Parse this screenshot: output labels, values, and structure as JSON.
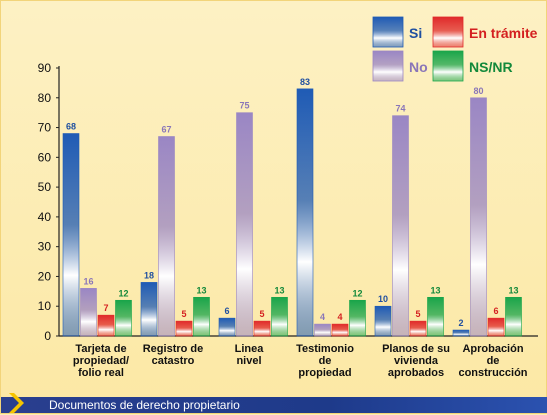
{
  "chart_data": {
    "type": "bar",
    "xlabel": "",
    "ylabel": "",
    "ylim": [
      0,
      90
    ],
    "yticks": [
      0,
      10,
      20,
      30,
      40,
      50,
      60,
      70,
      80,
      90
    ],
    "grid": false,
    "legend_position": "top-right",
    "categories": [
      [
        "Tarjeta de",
        "propiedad/",
        "folio real"
      ],
      [
        "Registro de",
        "catastro"
      ],
      [
        "Linea",
        "nivel"
      ],
      [
        "Testimonio",
        "de",
        "propiedad"
      ],
      [
        "Planos de su",
        "vivienda",
        "aprobados"
      ],
      [
        "Aprobación",
        "de",
        "construcción"
      ]
    ],
    "series": [
      {
        "name": "Si",
        "color": "#1f5bb5",
        "values": [
          68,
          18,
          6,
          83,
          10,
          2
        ]
      },
      {
        "name": "No",
        "color": "#9a86c4",
        "values": [
          16,
          67,
          75,
          4,
          74,
          80
        ]
      },
      {
        "name": "En trámite",
        "color": "#e02a2a",
        "values": [
          7,
          5,
          5,
          4,
          5,
          6
        ]
      },
      {
        "name": "NS/NR",
        "color": "#1aa54a",
        "values": [
          12,
          13,
          13,
          12,
          13,
          13
        ]
      }
    ],
    "label_colors": {
      "Si": "#1f4fa0",
      "No": "#8a76b8",
      "En trámite": "#d42020",
      "NS/NR": "#13893b"
    }
  },
  "footer": {
    "title": "Documentos de derecho propietario"
  }
}
